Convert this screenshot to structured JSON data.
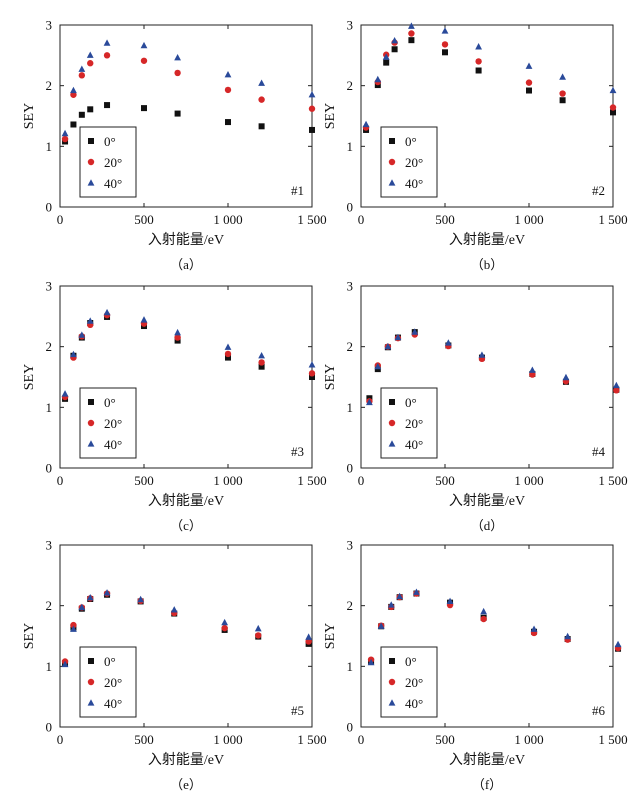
{
  "chart_data": [
    {
      "type": "scatter",
      "caption": "（a）",
      "tag": "#1",
      "xlabel": "入射能量/eV",
      "ylabel": "SEY",
      "xlim": [
        0,
        1500
      ],
      "ylim": [
        0,
        3
      ],
      "xticks": [
        0,
        500,
        1000,
        1500
      ],
      "xtick_labels": [
        "0",
        "500",
        "1 000",
        "1 500"
      ],
      "yticks": [
        0,
        1,
        2,
        3
      ],
      "ytick_labels": [
        "0",
        "1",
        "2",
        "3"
      ],
      "legend_position": "lower-left",
      "series": [
        {
          "name": "0°",
          "marker": "square",
          "color": "#111111",
          "x": [
            30,
            80,
            130,
            180,
            280,
            500,
            700,
            1000,
            1200,
            1500
          ],
          "y": [
            1.08,
            1.36,
            1.52,
            1.61,
            1.68,
            1.63,
            1.54,
            1.4,
            1.33,
            1.27
          ]
        },
        {
          "name": "20°",
          "marker": "circle",
          "color": "#d62728",
          "x": [
            30,
            80,
            130,
            180,
            280,
            500,
            700,
            1000,
            1200,
            1500
          ],
          "y": [
            1.12,
            1.85,
            2.17,
            2.37,
            2.5,
            2.41,
            2.21,
            1.93,
            1.77,
            1.62
          ]
        },
        {
          "name": "40°",
          "marker": "triangle",
          "color": "#2a4a9a",
          "x": [
            30,
            80,
            130,
            180,
            280,
            500,
            700,
            1000,
            1200,
            1500
          ],
          "y": [
            1.21,
            1.92,
            2.27,
            2.5,
            2.7,
            2.66,
            2.46,
            2.18,
            2.04,
            1.85
          ]
        }
      ]
    },
    {
      "type": "scatter",
      "caption": "（b）",
      "tag": "#2",
      "xlabel": "入射能量/eV",
      "ylabel": "SEY",
      "xlim": [
        0,
        1500
      ],
      "ylim": [
        0,
        3
      ],
      "xticks": [
        0,
        500,
        1000,
        1500
      ],
      "xtick_labels": [
        "0",
        "500",
        "1 000",
        "1 500"
      ],
      "yticks": [
        0,
        1,
        2,
        3
      ],
      "ytick_labels": [
        "0",
        "1",
        "2",
        "3"
      ],
      "legend_position": "lower-left",
      "series": [
        {
          "name": "0°",
          "marker": "square",
          "color": "#111111",
          "x": [
            30,
            100,
            150,
            200,
            300,
            500,
            700,
            1000,
            1200,
            1500
          ],
          "y": [
            1.27,
            2.01,
            2.38,
            2.6,
            2.75,
            2.55,
            2.25,
            1.92,
            1.76,
            1.56
          ]
        },
        {
          "name": "20°",
          "marker": "circle",
          "color": "#d62728",
          "x": [
            30,
            100,
            150,
            200,
            300,
            500,
            700,
            1000,
            1200,
            1500
          ],
          "y": [
            1.31,
            2.06,
            2.51,
            2.71,
            2.86,
            2.68,
            2.4,
            2.05,
            1.87,
            1.64
          ]
        },
        {
          "name": "40°",
          "marker": "triangle",
          "color": "#2a4a9a",
          "x": [
            30,
            100,
            150,
            200,
            300,
            500,
            700,
            1000,
            1200,
            1500
          ],
          "y": [
            1.36,
            2.1,
            2.47,
            2.74,
            2.98,
            2.9,
            2.64,
            2.32,
            2.14,
            1.92
          ]
        }
      ]
    },
    {
      "type": "scatter",
      "caption": "（c）",
      "tag": "#3",
      "xlabel": "入射能量/eV",
      "ylabel": "SEY",
      "xlim": [
        0,
        1500
      ],
      "ylim": [
        0,
        3
      ],
      "xticks": [
        0,
        500,
        1000,
        1500
      ],
      "xtick_labels": [
        "0",
        "500",
        "1 000",
        "1 500"
      ],
      "yticks": [
        0,
        1,
        2,
        3
      ],
      "ytick_labels": [
        "0",
        "1",
        "2",
        "3"
      ],
      "legend_position": "lower-left",
      "series": [
        {
          "name": "0°",
          "marker": "square",
          "color": "#111111",
          "x": [
            30,
            80,
            130,
            180,
            280,
            500,
            700,
            1000,
            1200,
            1500
          ],
          "y": [
            1.14,
            1.85,
            2.15,
            2.39,
            2.49,
            2.34,
            2.1,
            1.82,
            1.67,
            1.5
          ]
        },
        {
          "name": "20°",
          "marker": "circle",
          "color": "#d62728",
          "x": [
            30,
            80,
            130,
            180,
            280,
            500,
            700,
            1000,
            1200,
            1500
          ],
          "y": [
            1.17,
            1.82,
            2.17,
            2.36,
            2.52,
            2.38,
            2.15,
            1.88,
            1.74,
            1.56
          ]
        },
        {
          "name": "40°",
          "marker": "triangle",
          "color": "#2a4a9a",
          "x": [
            30,
            80,
            130,
            180,
            280,
            500,
            700,
            1000,
            1200,
            1500
          ],
          "y": [
            1.22,
            1.87,
            2.19,
            2.42,
            2.56,
            2.44,
            2.23,
            1.99,
            1.85,
            1.7
          ]
        }
      ]
    },
    {
      "type": "scatter",
      "caption": "（d）",
      "tag": "#4",
      "xlabel": "入射能量/eV",
      "ylabel": "SEY",
      "xlim": [
        0,
        1500
      ],
      "ylim": [
        0,
        3
      ],
      "xticks": [
        0,
        500,
        1000,
        1500
      ],
      "xtick_labels": [
        "0",
        "500",
        "1 000",
        "1 500"
      ],
      "yticks": [
        0,
        1,
        2,
        3
      ],
      "ytick_labels": [
        "0",
        "1",
        "2",
        "3"
      ],
      "legend_position": "lower-left",
      "series": [
        {
          "name": "0°",
          "marker": "square",
          "color": "#111111",
          "x": [
            50,
            100,
            160,
            220,
            320,
            520,
            720,
            1020,
            1220,
            1520
          ],
          "y": [
            1.15,
            1.63,
            1.99,
            2.15,
            2.24,
            2.02,
            1.82,
            1.55,
            1.42,
            1.29
          ]
        },
        {
          "name": "20°",
          "marker": "circle",
          "color": "#d62728",
          "x": [
            50,
            100,
            160,
            220,
            320,
            520,
            720,
            1020,
            1220,
            1520
          ],
          "y": [
            1.1,
            1.69,
            2.0,
            2.14,
            2.2,
            2.01,
            1.8,
            1.54,
            1.43,
            1.28
          ]
        },
        {
          "name": "40°",
          "marker": "triangle",
          "color": "#2a4a9a",
          "x": [
            50,
            100,
            160,
            220,
            320,
            520,
            720,
            1020,
            1220,
            1520
          ],
          "y": [
            1.08,
            1.67,
            2.0,
            2.15,
            2.24,
            2.06,
            1.86,
            1.61,
            1.49,
            1.36
          ]
        }
      ]
    },
    {
      "type": "scatter",
      "caption": "（e）",
      "tag": "#5",
      "xlabel": "入射能量/eV",
      "ylabel": "SEY",
      "xlim": [
        0,
        1500
      ],
      "ylim": [
        0,
        3
      ],
      "xticks": [
        0,
        500,
        1000,
        1500
      ],
      "xtick_labels": [
        "0",
        "500",
        "1 000",
        "1 500"
      ],
      "yticks": [
        0,
        1,
        2,
        3
      ],
      "ytick_labels": [
        "0",
        "1",
        "2",
        "3"
      ],
      "legend_position": "lower-left",
      "series": [
        {
          "name": "0°",
          "marker": "square",
          "color": "#111111",
          "x": [
            30,
            80,
            130,
            180,
            280,
            480,
            680,
            980,
            1180,
            1480
          ],
          "y": [
            1.05,
            1.64,
            1.95,
            2.11,
            2.18,
            2.07,
            1.87,
            1.6,
            1.49,
            1.37
          ]
        },
        {
          "name": "20°",
          "marker": "circle",
          "color": "#d62728",
          "x": [
            30,
            80,
            130,
            180,
            280,
            480,
            680,
            980,
            1180,
            1480
          ],
          "y": [
            1.08,
            1.68,
            1.97,
            2.12,
            2.2,
            2.08,
            1.88,
            1.63,
            1.51,
            1.41
          ]
        },
        {
          "name": "40°",
          "marker": "triangle",
          "color": "#2a4a9a",
          "x": [
            30,
            80,
            130,
            180,
            280,
            480,
            680,
            980,
            1180,
            1480
          ],
          "y": [
            1.03,
            1.61,
            1.97,
            2.13,
            2.21,
            2.1,
            1.93,
            1.72,
            1.62,
            1.48
          ]
        }
      ]
    },
    {
      "type": "scatter",
      "caption": "（f）",
      "tag": "#6",
      "xlabel": "入射能量/eV",
      "ylabel": "SEY",
      "xlim": [
        0,
        1500
      ],
      "ylim": [
        0,
        3
      ],
      "xticks": [
        0,
        500,
        1000,
        1500
      ],
      "xtick_labels": [
        "0",
        "500",
        "1 000",
        "1 500"
      ],
      "yticks": [
        0,
        1,
        2,
        3
      ],
      "ytick_labels": [
        "0",
        "1",
        "2",
        "3"
      ],
      "legend_position": "lower-left",
      "series": [
        {
          "name": "0°",
          "marker": "square",
          "color": "#111111",
          "x": [
            60,
            120,
            180,
            230,
            330,
            530,
            730,
            1030,
            1230,
            1530
          ],
          "y": [
            1.08,
            1.66,
            1.98,
            2.14,
            2.2,
            2.05,
            1.8,
            1.57,
            1.45,
            1.29
          ]
        },
        {
          "name": "20°",
          "marker": "circle",
          "color": "#d62728",
          "x": [
            60,
            120,
            180,
            230,
            330,
            530,
            730,
            1030,
            1230,
            1530
          ],
          "y": [
            1.11,
            1.67,
            1.98,
            2.14,
            2.2,
            2.01,
            1.78,
            1.55,
            1.44,
            1.3
          ]
        },
        {
          "name": "40°",
          "marker": "triangle",
          "color": "#2a4a9a",
          "x": [
            60,
            120,
            180,
            230,
            330,
            530,
            730,
            1030,
            1230,
            1530
          ],
          "y": [
            1.06,
            1.66,
            2.01,
            2.15,
            2.22,
            2.07,
            1.9,
            1.61,
            1.49,
            1.36
          ]
        }
      ]
    }
  ]
}
